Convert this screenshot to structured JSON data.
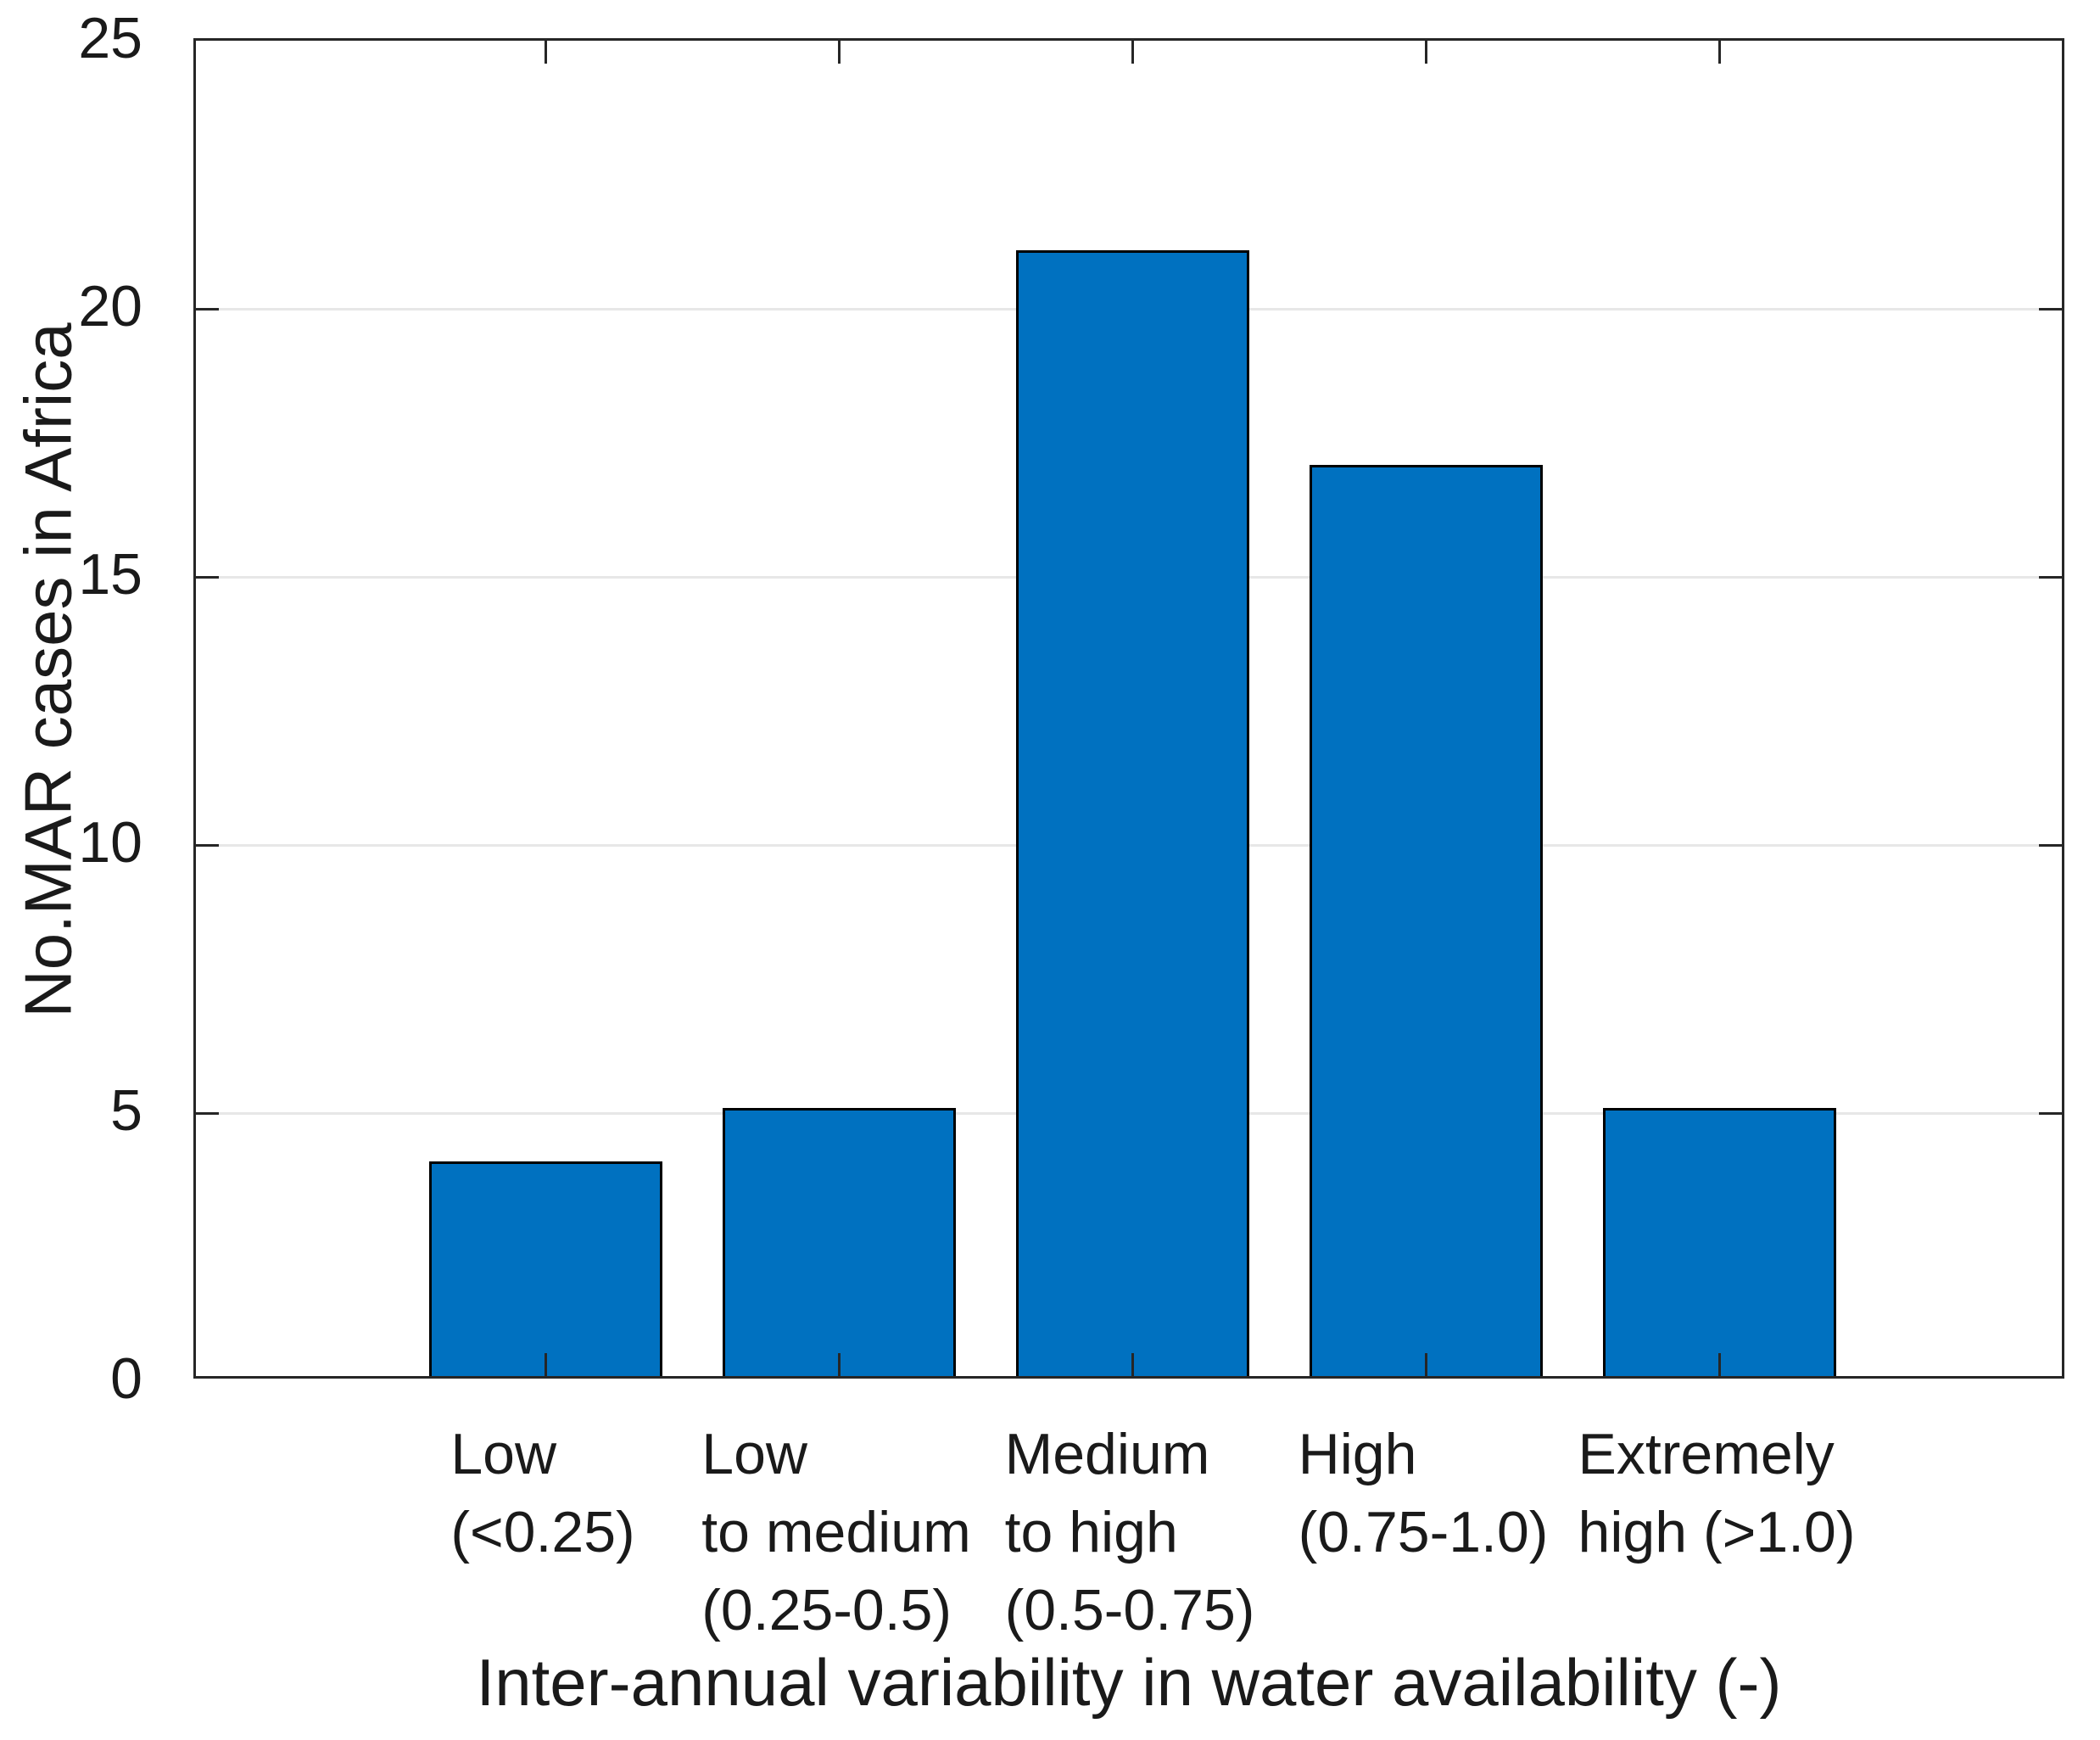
{
  "chart_data": {
    "type": "bar",
    "title": "",
    "categories": [
      {
        "lines": [
          "Low",
          "(<0.25)"
        ]
      },
      {
        "lines": [
          "Low",
          "to medium",
          "(0.25-0.5)"
        ]
      },
      {
        "lines": [
          "Medium",
          "to high",
          "(0.5-0.75)"
        ]
      },
      {
        "lines": [
          "High",
          "(0.75-1.0)"
        ]
      },
      {
        "lines": [
          "Extremely",
          "high (>1.0)"
        ]
      }
    ],
    "values": [
      4,
      5,
      21,
      17,
      5
    ],
    "xlabel": "Inter-annual variability in water availability (-)",
    "ylabel": "No.MAR cases in Africa",
    "ylim": [
      0,
      25
    ],
    "yticks": [
      0,
      5,
      10,
      15,
      20,
      25
    ],
    "grid": "horizontal-only",
    "legend": "none",
    "bar_color": "#0071C0",
    "bar_edge_color": "#000000",
    "axis_color": "#262626",
    "grid_color": "#E7E7E7",
    "text_color": "#1A1A1A",
    "background_color": "#FFFFFF"
  }
}
